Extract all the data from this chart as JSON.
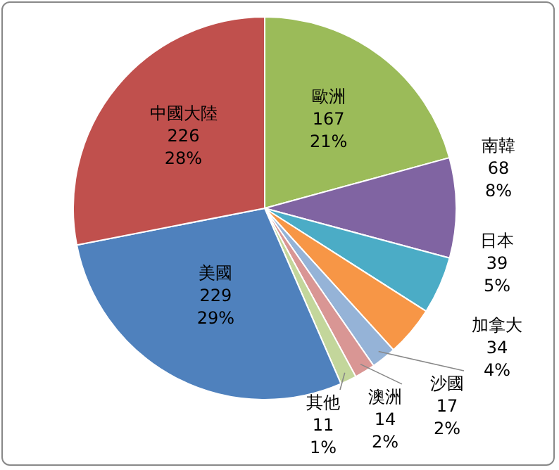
{
  "chart_data": {
    "type": "pie",
    "categories": [
      "歐洲",
      "南韓",
      "日本",
      "加拿大",
      "沙國",
      "澳洲",
      "其他",
      "美國",
      "中國大陸"
    ],
    "values": [
      167,
      68,
      39,
      34,
      17,
      14,
      11,
      229,
      226
    ],
    "value_labels": [
      "167\n21%",
      "68\n8%",
      "39\n5%",
      "34\n4%",
      "17\n2%",
      "14\n2%",
      "11\n1%",
      "229\n29%",
      "226\n28%"
    ],
    "colors": [
      "#9bbb59",
      "#8064a2",
      "#4bacc6",
      "#f79646",
      "#95b3d7",
      "#d99694",
      "#c3d69b",
      "#4f81bd",
      "#c0504d"
    ]
  }
}
